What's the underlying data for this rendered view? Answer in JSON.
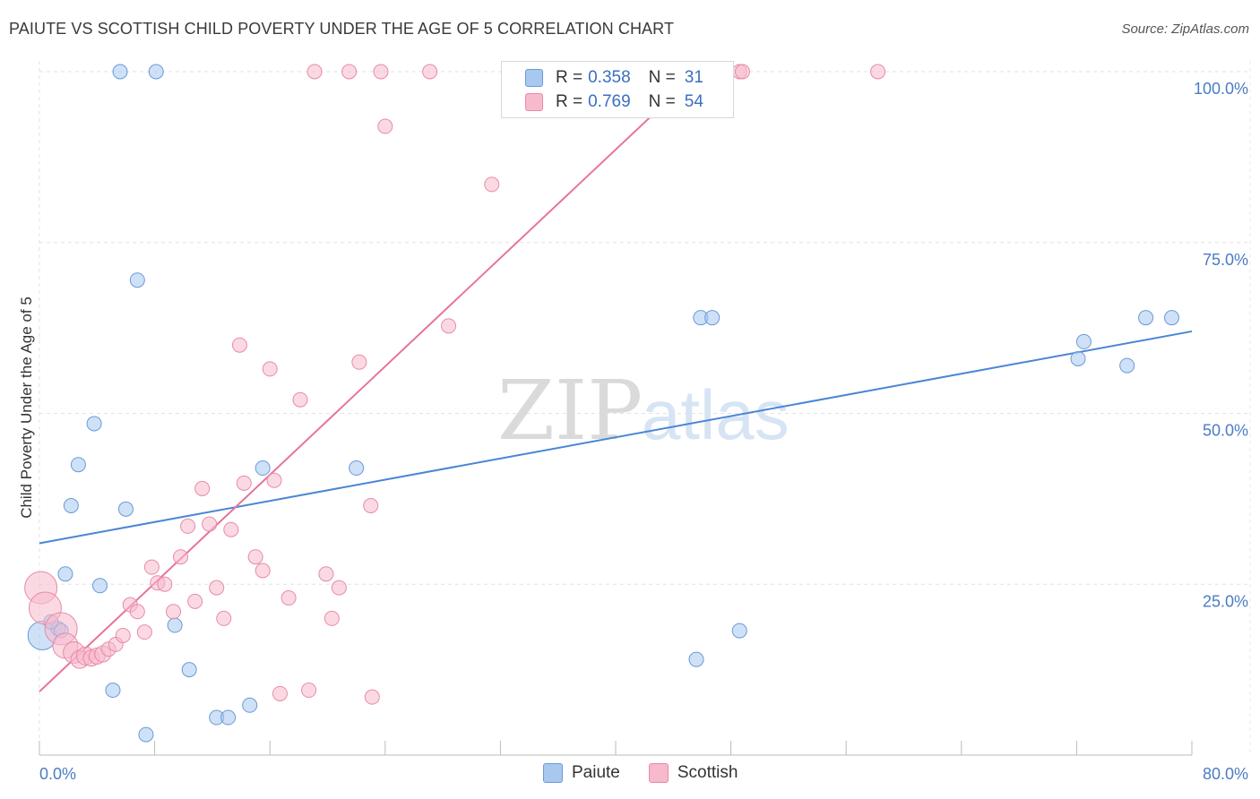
{
  "title": "PAIUTE VS SCOTTISH CHILD POVERTY UNDER THE AGE OF 5 CORRELATION CHART",
  "source": "Source: ZipAtlas.com",
  "watermark": {
    "zip": "ZIP",
    "atlas": "atlas"
  },
  "legend": {
    "r_label": "R =",
    "n_label": "N =",
    "rows": [
      {
        "name": "Paiute",
        "r": "0.358",
        "n": "31",
        "color": "#a8c8f0",
        "stroke": "#6a9ad8"
      },
      {
        "name": "Scottish",
        "r": "0.769",
        "n": "54",
        "color": "#f7b9cc",
        "stroke": "#e88aa8"
      }
    ]
  },
  "bottom_legend": {
    "paiute": "Paiute",
    "scottish": "Scottish"
  },
  "chart_data": {
    "type": "scatter",
    "title": "PAIUTE VS SCOTTISH CHILD POVERTY UNDER THE AGE OF 5 CORRELATION CHART",
    "xlabel": "",
    "ylabel": "Child Poverty Under the Age of 5",
    "xlim": [
      0,
      80
    ],
    "ylim": [
      0,
      105
    ],
    "x_tick_labels": [
      "0.0%",
      "80.0%"
    ],
    "y_tick_labels": [
      "25.0%",
      "50.0%",
      "75.0%",
      "100.0%"
    ],
    "y_ticks": [
      25,
      50,
      75,
      100
    ],
    "grid": true,
    "series": [
      {
        "name": "Paiute",
        "color": "#4a86d4",
        "points": [
          [
            0.2,
            17.5
          ],
          [
            1.3,
            18.5
          ],
          [
            1.5,
            18.2
          ],
          [
            1.8,
            26.5
          ],
          [
            2.2,
            36.5
          ],
          [
            2.7,
            42.5
          ],
          [
            3.8,
            48.5
          ],
          [
            4.2,
            24.8
          ],
          [
            5.1,
            9.5
          ],
          [
            6.0,
            36.0
          ],
          [
            6.8,
            69.5
          ],
          [
            5.6,
            100
          ],
          [
            8.1,
            100
          ],
          [
            7.4,
            3.0
          ],
          [
            9.4,
            19.0
          ],
          [
            10.4,
            12.5
          ],
          [
            12.3,
            5.5
          ],
          [
            13.1,
            5.5
          ],
          [
            14.6,
            7.3
          ],
          [
            15.5,
            42.0
          ],
          [
            22.0,
            42.0
          ],
          [
            45.6,
            14.0
          ],
          [
            45.9,
            64.0
          ],
          [
            46.7,
            64.0
          ],
          [
            48.6,
            18.2
          ],
          [
            72.1,
            58.0
          ],
          [
            72.5,
            60.5
          ],
          [
            75.5,
            57.0
          ],
          [
            76.8,
            64.0
          ],
          [
            78.6,
            64.0
          ],
          [
            0.8,
            19.5
          ]
        ],
        "sizes": [
          16,
          8,
          8,
          8,
          8,
          8,
          8,
          8,
          8,
          8,
          8,
          8,
          8,
          8,
          8,
          8,
          8,
          8,
          8,
          8,
          8,
          8,
          8,
          8,
          8,
          8,
          8,
          8,
          8,
          8,
          8
        ],
        "trend": {
          "x": [
            0,
            80
          ],
          "y": [
            31.0,
            62.0
          ]
        }
      },
      {
        "name": "Scottish",
        "color": "#e8739a",
        "points": [
          [
            0.1,
            24.5
          ],
          [
            0.4,
            21.5
          ],
          [
            1.5,
            18.5
          ],
          [
            1.8,
            16.0
          ],
          [
            2.4,
            15.0
          ],
          [
            2.8,
            14.0
          ],
          [
            3.2,
            14.5
          ],
          [
            3.6,
            14.2
          ],
          [
            4.0,
            14.5
          ],
          [
            4.4,
            14.8
          ],
          [
            4.8,
            15.5
          ],
          [
            5.3,
            16.2
          ],
          [
            5.8,
            17.5
          ],
          [
            6.3,
            22.0
          ],
          [
            6.8,
            21.0
          ],
          [
            7.3,
            18.0
          ],
          [
            7.8,
            27.5
          ],
          [
            8.2,
            25.2
          ],
          [
            8.7,
            25.0
          ],
          [
            9.3,
            21.0
          ],
          [
            9.8,
            29.0
          ],
          [
            10.3,
            33.5
          ],
          [
            10.8,
            22.5
          ],
          [
            11.3,
            39.0
          ],
          [
            11.8,
            33.8
          ],
          [
            12.3,
            24.5
          ],
          [
            12.8,
            20.0
          ],
          [
            13.3,
            33.0
          ],
          [
            13.9,
            60.0
          ],
          [
            14.2,
            39.8
          ],
          [
            15.0,
            29.0
          ],
          [
            15.5,
            27.0
          ],
          [
            16.0,
            56.5
          ],
          [
            16.3,
            40.2
          ],
          [
            16.7,
            9.0
          ],
          [
            17.3,
            23.0
          ],
          [
            18.1,
            52.0
          ],
          [
            18.7,
            9.5
          ],
          [
            19.1,
            100
          ],
          [
            19.9,
            26.5
          ],
          [
            20.3,
            20.0
          ],
          [
            20.8,
            24.5
          ],
          [
            21.5,
            100
          ],
          [
            22.2,
            57.5
          ],
          [
            23.0,
            36.5
          ],
          [
            23.1,
            8.5
          ],
          [
            23.7,
            100
          ],
          [
            24.0,
            92.0
          ],
          [
            27.1,
            100
          ],
          [
            31.4,
            83.5
          ],
          [
            28.4,
            62.8
          ],
          [
            48.6,
            100
          ],
          [
            48.8,
            100
          ],
          [
            58.2,
            100
          ]
        ],
        "sizes": [
          18,
          18,
          18,
          14,
          12,
          10,
          10,
          9,
          9,
          9,
          8,
          8,
          8,
          8,
          8,
          8,
          8,
          8,
          8,
          8,
          8,
          8,
          8,
          8,
          8,
          8,
          8,
          8,
          8,
          8,
          8,
          8,
          8,
          8,
          8,
          8,
          8,
          8,
          8,
          8,
          8,
          8,
          8,
          8,
          8,
          8,
          8,
          8,
          8,
          8,
          8,
          8,
          8,
          8
        ],
        "trend": {
          "x": [
            0,
            45.5
          ],
          "y": [
            9.3,
            99.5
          ]
        }
      }
    ]
  }
}
